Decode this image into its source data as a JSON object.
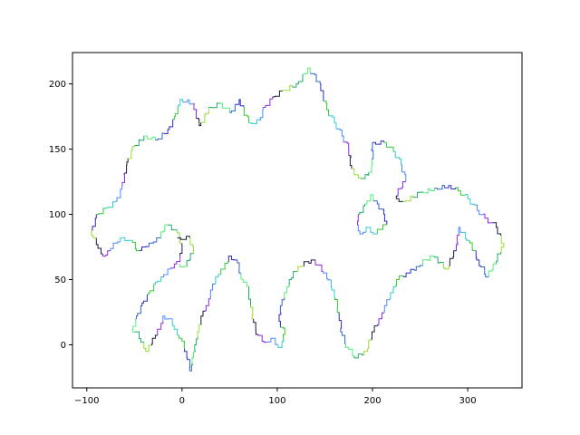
{
  "chart_data": {
    "type": "line",
    "title": "",
    "xlabel": "",
    "ylabel": "",
    "xlim": [
      -115,
      357
    ],
    "ylim": [
      -33,
      224
    ],
    "x_ticks": [
      -100,
      0,
      100,
      200,
      300
    ],
    "y_ticks": [
      0,
      50,
      100,
      150,
      200
    ],
    "x_tick_labels": [
      "−100",
      "0",
      "100",
      "200",
      "300"
    ],
    "y_tick_labels": [
      "0",
      "50",
      "100",
      "150",
      "200"
    ],
    "grid": false,
    "legend": "none",
    "segment_colors": [
      "#2b2bc8",
      "#33cc33",
      "#33cccc",
      "#4d88ff",
      "#8a2be2",
      "#1a1a40",
      "#99dd33",
      "#22aa66",
      "#55ee77",
      "#3366cc"
    ],
    "outline": [
      [
        -95,
        88
      ],
      [
        -90,
        100
      ],
      [
        -80,
        105
      ],
      [
        -70,
        110
      ],
      [
        -63,
        122
      ],
      [
        -58,
        140
      ],
      [
        -52,
        152
      ],
      [
        -40,
        160
      ],
      [
        -28,
        157
      ],
      [
        -15,
        165
      ],
      [
        -8,
        175
      ],
      [
        -2,
        188
      ],
      [
        12,
        185
      ],
      [
        18,
        168
      ],
      [
        28,
        182
      ],
      [
        40,
        185
      ],
      [
        50,
        178
      ],
      [
        60,
        188
      ],
      [
        70,
        170
      ],
      [
        82,
        172
      ],
      [
        85,
        182
      ],
      [
        95,
        190
      ],
      [
        105,
        195
      ],
      [
        120,
        200
      ],
      [
        132,
        212
      ],
      [
        145,
        200
      ],
      [
        152,
        180
      ],
      [
        160,
        170
      ],
      [
        168,
        160
      ],
      [
        175,
        150
      ],
      [
        178,
        135
      ],
      [
        185,
        128
      ],
      [
        195,
        130
      ],
      [
        200,
        140
      ],
      [
        200,
        155
      ],
      [
        212,
        155
      ],
      [
        222,
        148
      ],
      [
        230,
        138
      ],
      [
        235,
        125
      ],
      [
        225,
        112
      ],
      [
        232,
        110
      ],
      [
        250,
        117
      ],
      [
        265,
        120
      ],
      [
        280,
        122
      ],
      [
        290,
        118
      ],
      [
        300,
        112
      ],
      [
        310,
        103
      ],
      [
        318,
        97
      ],
      [
        330,
        90
      ],
      [
        338,
        75
      ],
      [
        330,
        62
      ],
      [
        322,
        52
      ],
      [
        312,
        65
      ],
      [
        302,
        80
      ],
      [
        292,
        90
      ],
      [
        288,
        72
      ],
      [
        280,
        58
      ],
      [
        265,
        68
      ],
      [
        250,
        60
      ],
      [
        240,
        55
      ],
      [
        228,
        50
      ],
      [
        222,
        40
      ],
      [
        215,
        30
      ],
      [
        210,
        20
      ],
      [
        202,
        10
      ],
      [
        195,
        -5
      ],
      [
        185,
        -10
      ],
      [
        175,
        -2
      ],
      [
        168,
        10
      ],
      [
        165,
        25
      ],
      [
        160,
        42
      ],
      [
        152,
        55
      ],
      [
        140,
        65
      ],
      [
        125,
        60
      ],
      [
        115,
        50
      ],
      [
        110,
        40
      ],
      [
        105,
        30
      ],
      [
        102,
        18
      ],
      [
        108,
        8
      ],
      [
        105,
        -2
      ],
      [
        98,
        5
      ],
      [
        90,
        2
      ],
      [
        80,
        8
      ],
      [
        75,
        20
      ],
      [
        72,
        35
      ],
      [
        68,
        48
      ],
      [
        62,
        55
      ],
      [
        58,
        65
      ],
      [
        52,
        68
      ],
      [
        45,
        58
      ],
      [
        38,
        52
      ],
      [
        32,
        42
      ],
      [
        28,
        30
      ],
      [
        22,
        22
      ],
      [
        18,
        10
      ],
      [
        15,
        0
      ],
      [
        12,
        -10
      ],
      [
        10,
        -20
      ],
      [
        5,
        -5
      ],
      [
        0,
        5
      ],
      [
        -5,
        12
      ],
      [
        -10,
        20
      ],
      [
        -18,
        22
      ],
      [
        -22,
        12
      ],
      [
        -28,
        5
      ],
      [
        -35,
        -5
      ],
      [
        -40,
        2
      ],
      [
        -45,
        10
      ],
      [
        -52,
        12
      ],
      [
        -48,
        22
      ],
      [
        -42,
        32
      ],
      [
        -35,
        40
      ],
      [
        -28,
        48
      ],
      [
        -22,
        52
      ],
      [
        -15,
        58
      ],
      [
        -8,
        62
      ],
      [
        -2,
        68
      ],
      [
        0,
        78
      ],
      [
        -5,
        88
      ],
      [
        -15,
        92
      ],
      [
        -22,
        82
      ],
      [
        -30,
        78
      ],
      [
        -38,
        75
      ],
      [
        -45,
        72
      ],
      [
        -52,
        80
      ],
      [
        -60,
        82
      ],
      [
        -68,
        78
      ],
      [
        -75,
        72
      ],
      [
        -80,
        68
      ],
      [
        -85,
        74
      ],
      [
        -90,
        82
      ],
      [
        -95,
        88
      ]
    ],
    "inner_loop": [
      [
        185,
        100
      ],
      [
        192,
        108
      ],
      [
        198,
        115
      ],
      [
        205,
        108
      ],
      [
        212,
        100
      ],
      [
        215,
        92
      ],
      [
        205,
        85
      ],
      [
        198,
        90
      ],
      [
        190,
        85
      ],
      [
        185,
        92
      ],
      [
        185,
        100
      ]
    ],
    "inner_spur": [
      [
        -5,
        82
      ],
      [
        8,
        82
      ],
      [
        12,
        70
      ],
      [
        5,
        60
      ],
      [
        -2,
        62
      ]
    ]
  }
}
